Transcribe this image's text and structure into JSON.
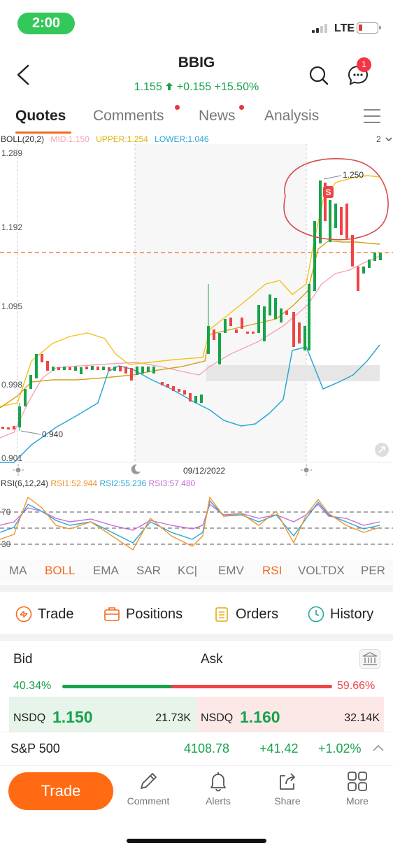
{
  "status": {
    "time": "2:00",
    "network": "LTE"
  },
  "header": {
    "ticker": "BBIG",
    "price": "1.155",
    "change": "+0.155",
    "change_pct": "+15.50%",
    "notifications": "1"
  },
  "tabs": [
    {
      "label": "Quotes",
      "active": true
    },
    {
      "label": "Comments",
      "dot": true
    },
    {
      "label": "News",
      "dot": true
    },
    {
      "label": "Analysis"
    }
  ],
  "boll": {
    "name": "BOLL(20,2)",
    "mid": "MID:1.150",
    "upper": "UPPER:1.254",
    "lower": "LOWER:1.046",
    "period": "2"
  },
  "chart_data": {
    "type": "candlestick",
    "y_ticks": [
      "1.289",
      "1.192",
      "1.095",
      "0.998",
      "0.901"
    ],
    "date_label": "09/12/2022",
    "annotations": {
      "high": "1.250",
      "low": "0.940",
      "marker": "S"
    },
    "rsi": {
      "name": "RSI(6,12,24)",
      "rsi1": "RSI1:52.944",
      "rsi2": "RSI2:55.236",
      "rsi3": "RSI3:57.480",
      "levels": [
        "70",
        "30"
      ]
    },
    "colors": {
      "up": "#17a34a",
      "down": "#ef4444",
      "mid": "#f4a6b4",
      "upper": "#f2c21b",
      "lower": "#2aa7d6",
      "rsi1": "#f0952e",
      "rsi2": "#2aa7d6",
      "rsi3": "#c36fd6"
    }
  },
  "indicators": [
    "MA",
    "BOLL",
    "EMA",
    "SAR",
    "KC|",
    "EMV",
    "RSI",
    "VOLTDX",
    "PER"
  ],
  "trade_tabs": [
    "Trade",
    "Positions",
    "Orders",
    "History"
  ],
  "bidask": {
    "bid_label": "Bid",
    "ask_label": "Ask",
    "bid_pct": "40.34%",
    "ask_pct": "59.66%",
    "bid": {
      "exchange": "NSDQ",
      "price": "1.150",
      "volume": "21.73K"
    },
    "ask": {
      "exchange": "NSDQ",
      "price": "1.160",
      "volume": "32.14K"
    }
  },
  "index": {
    "name": "S&P 500",
    "value": "4108.78",
    "change": "+41.42",
    "change_pct": "+1.02%"
  },
  "bottom_bar": {
    "trade": "Trade",
    "items": [
      "Comment",
      "Alerts",
      "Share",
      "More"
    ]
  }
}
